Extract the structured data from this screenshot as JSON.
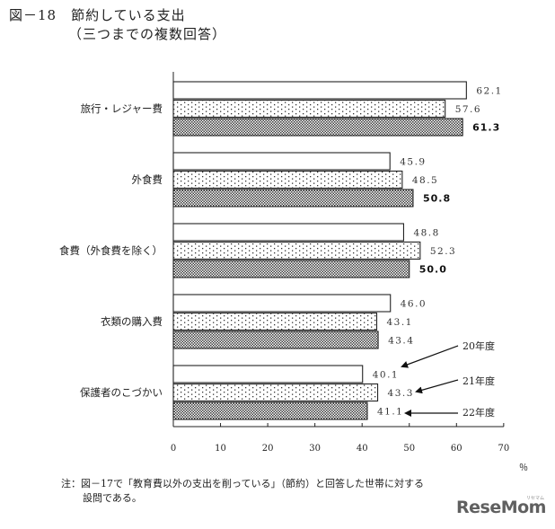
{
  "header": {
    "title": "図－18　節約している支出",
    "subtitle": "（三つまでの複数回答）"
  },
  "chart_data": {
    "type": "bar",
    "orientation": "horizontal",
    "categories": [
      "旅行・レジャー費",
      "外食費",
      "食費（外食費を除く）",
      "衣類の購入費",
      "保護者のこづかい"
    ],
    "series": [
      {
        "name": "20年度",
        "values": [
          62.1,
          45.9,
          48.8,
          46.0,
          40.1
        ],
        "labels": [
          "62.1",
          "45.9",
          "48.8",
          "46.0",
          "40.1"
        ],
        "fill": "white"
      },
      {
        "name": "21年度",
        "values": [
          57.6,
          48.5,
          52.3,
          43.1,
          43.3
        ],
        "labels": [
          "57.6",
          "48.5",
          "52.3",
          "43.1",
          "43.3"
        ],
        "fill": "dots"
      },
      {
        "name": "22年度",
        "values": [
          61.3,
          50.8,
          50.0,
          43.4,
          41.1
        ],
        "labels": [
          "61.3",
          "50.8",
          "50.0",
          "43.4",
          "41.1"
        ],
        "fill": "checker",
        "bold": [
          true,
          true,
          true,
          false,
          false
        ]
      }
    ],
    "x_ticks": [
      "0",
      "10",
      "20",
      "30",
      "40",
      "50",
      "60",
      "70"
    ],
    "xlim": [
      0,
      70
    ],
    "unit": "％",
    "grid": false,
    "legend": "annotations with arrows on last category group"
  },
  "note": {
    "line1": "注：図－17で「教育費以外の支出を削っている」（節約）と回答した世帯に対する",
    "line2": "設問である。"
  },
  "logo": {
    "text": "ReseMom",
    "small": "リセマム"
  }
}
